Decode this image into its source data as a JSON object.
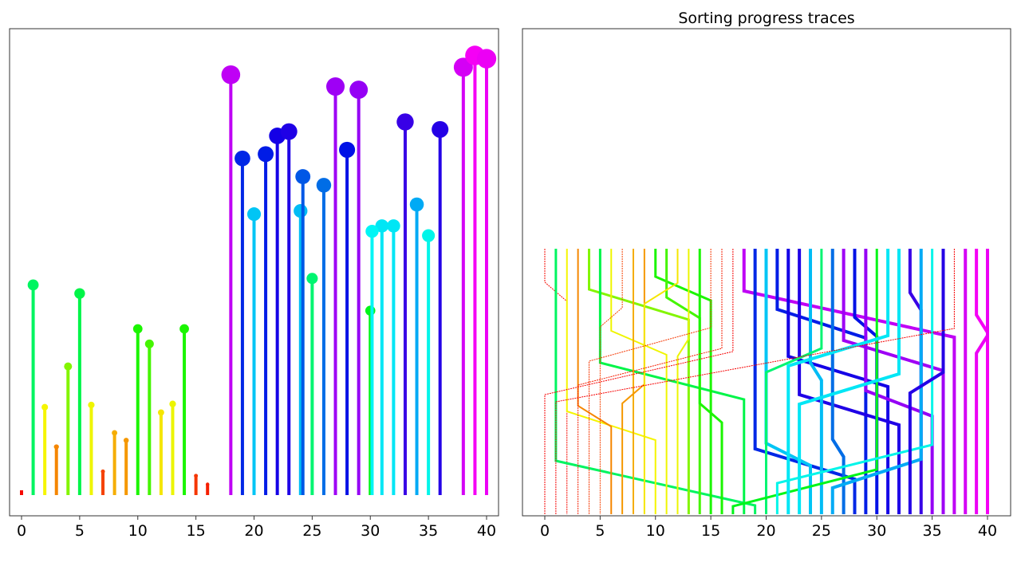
{
  "chart_data": [
    {
      "type": "stem",
      "title": "",
      "xlabel": "",
      "ylabel": "",
      "xlim": [
        -1,
        41
      ],
      "x_ticks": [
        "0",
        "5",
        "10",
        "15",
        "20",
        "25",
        "30",
        "35",
        "40"
      ],
      "y_ticks": [],
      "grid": false,
      "color_map": "hue by value (red = low, magenta = high)",
      "values": [
        0.3,
        19.6,
        8.2,
        4.5,
        12.0,
        18.8,
        8.4,
        2.2,
        5.8,
        5.1,
        15.5,
        14.1,
        7.7,
        8.5,
        15.5,
        1.8,
        1.0,
        0,
        39.2,
        31.4,
        26.2,
        31.8,
        33.5,
        33.9,
        26.5,
        20.2,
        28.9,
        38.1,
        32.2,
        37.8,
        17.2,
        25.1,
        25.1,
        34.8,
        27.1,
        24.2,
        34.1,
        0,
        39.9,
        41.0,
        40.7
      ],
      "moving_points": [
        {
          "x": 24.2,
          "value": 29.7
        },
        {
          "x": 30.15,
          "value": 24.6
        }
      ]
    },
    {
      "type": "line",
      "title": "Sorting progress traces",
      "xlabel": "",
      "ylabel": "",
      "xlim": [
        -1,
        41
      ],
      "x_ticks": [
        "0",
        "5",
        "10",
        "15",
        "20",
        "25",
        "30",
        "35",
        "40"
      ],
      "y_ticks": [],
      "grid": false
    }
  ]
}
